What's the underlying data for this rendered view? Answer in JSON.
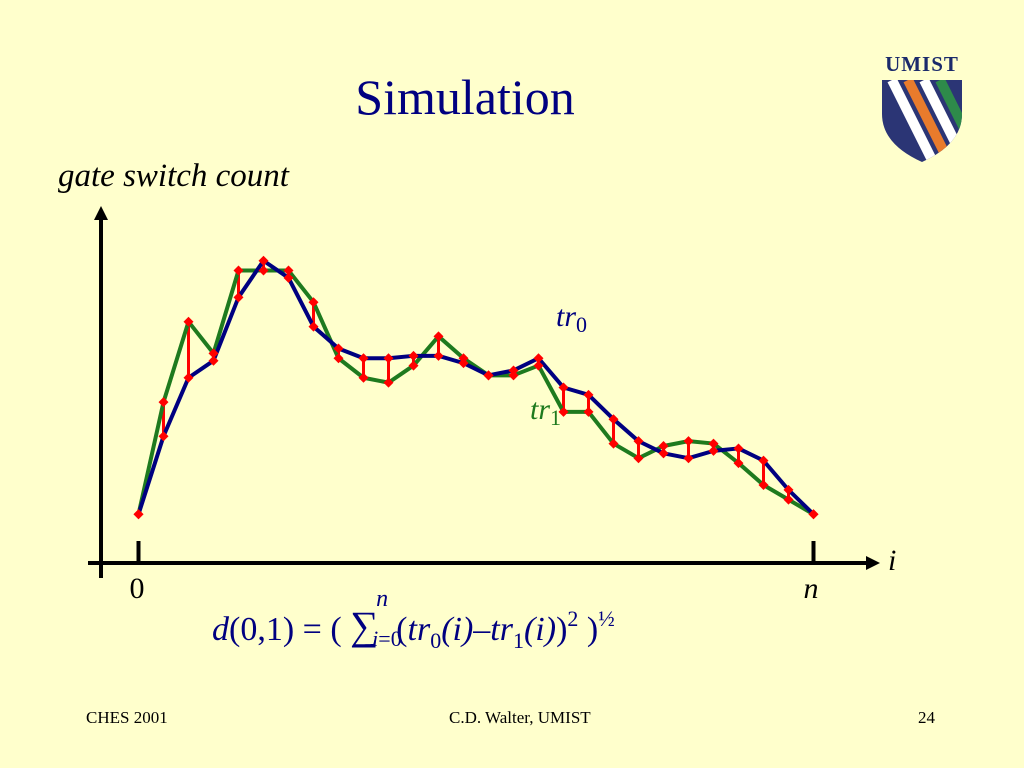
{
  "slide": {
    "title": "Simulation",
    "logo_text": "UMIST",
    "footer_left": "CHES 2001",
    "footer_center": "C.D. Walter, UMIST",
    "footer_right": "24"
  },
  "colors": {
    "background": "#FFFFCC",
    "title": "#000080",
    "tr0": "#000080",
    "tr1": "#1E7A1E",
    "difference": "#FF0000"
  },
  "formula": {
    "d": "d",
    "args": "(0,1)",
    "eq": "=",
    "open": "(",
    "sigma": "∑",
    "upper": "n",
    "lower_i": "i",
    "lower_rest": "=0",
    "body_open": "(",
    "tr": "tr",
    "sub0": "0",
    "sub1": "1",
    "paren_i": "(i)",
    "minus": "–",
    "close": ")",
    "sq": "2",
    "close_outer": ")",
    "half": "½"
  },
  "chart_data": {
    "type": "line",
    "ylabel": "gate switch count",
    "xlabel": "i",
    "x_ticks": [
      "0",
      "n"
    ],
    "x": [
      0,
      1,
      2,
      3,
      4,
      5,
      6,
      7,
      8,
      9,
      10,
      11,
      12,
      13,
      14,
      15,
      16,
      17,
      18,
      19,
      20,
      21,
      22,
      23,
      24,
      25,
      26,
      27
    ],
    "xlim": [
      -1.5,
      29.5
    ],
    "ylim": [
      0,
      14.4
    ],
    "grid": false,
    "legend": "inline labels on lines",
    "series": [
      {
        "name": "tr0",
        "values": [
          2.0,
          5.2,
          7.6,
          8.3,
          10.9,
          12.4,
          11.7,
          9.7,
          8.8,
          8.4,
          8.4,
          8.5,
          8.5,
          8.2,
          7.7,
          7.9,
          8.4,
          7.2,
          6.9,
          5.9,
          5.0,
          4.5,
          4.3,
          4.6,
          4.7,
          4.2,
          3.0,
          2.0
        ]
      },
      {
        "name": "tr1",
        "values": [
          2.0,
          6.6,
          9.9,
          8.6,
          12.0,
          12.0,
          12.0,
          10.7,
          8.4,
          7.6,
          7.4,
          8.1,
          9.3,
          8.4,
          7.7,
          7.7,
          8.1,
          6.2,
          6.2,
          4.9,
          4.3,
          4.8,
          5.0,
          4.9,
          4.1,
          3.2,
          2.6,
          2.0
        ]
      }
    ],
    "annotations": [
      {
        "text": "tr",
        "sub": "0",
        "series": "tr0"
      },
      {
        "text": "tr",
        "sub": "1",
        "series": "tr1"
      }
    ]
  }
}
